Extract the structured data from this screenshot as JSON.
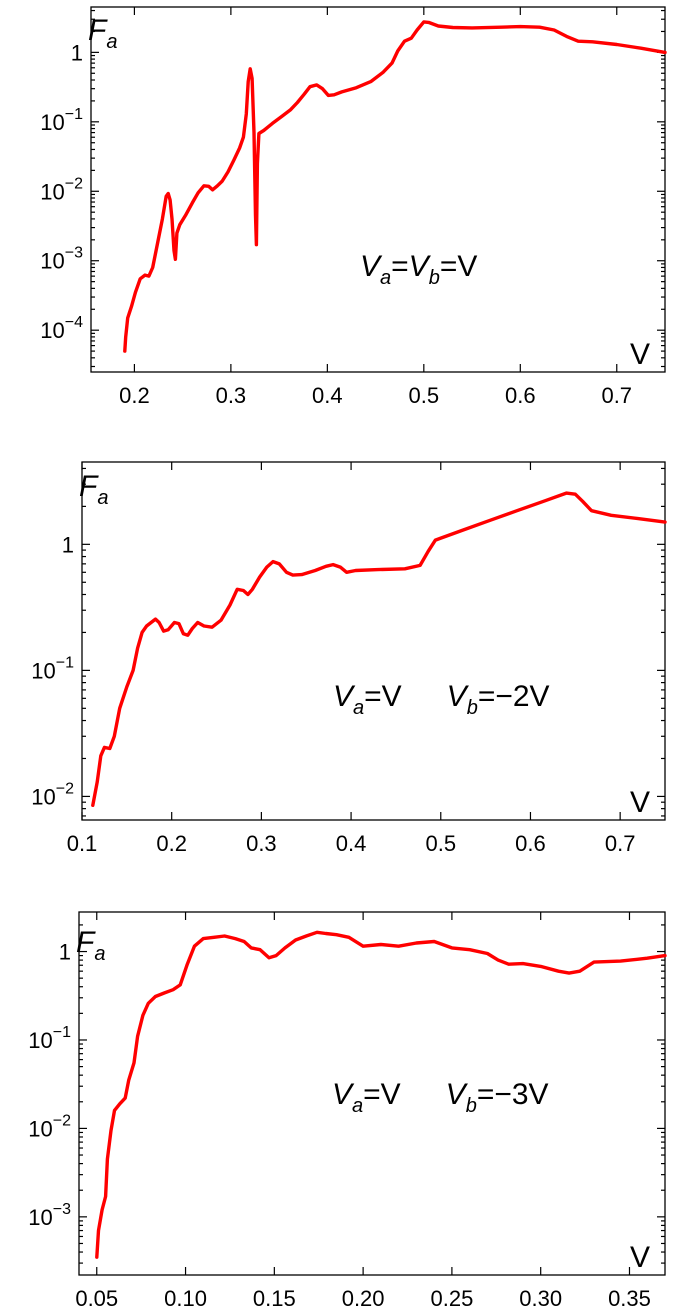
{
  "chart_data": [
    {
      "type": "line",
      "xlabel": "V",
      "ylabel_main": "F",
      "ylabel_sub": "a",
      "annotation": [
        {
          "text": "V",
          "italic": true
        },
        {
          "text": "a",
          "sub": true,
          "italic": true
        },
        {
          "text": "=",
          "italic": false
        },
        {
          "text": "V",
          "italic": true
        },
        {
          "text": "b",
          "sub": true,
          "italic": true
        },
        {
          "text": "=V",
          "italic": false
        }
      ],
      "y_scale": "log",
      "xlim": [
        0.155,
        0.75
      ],
      "ylim": [
        2.5e-05,
        4.5
      ],
      "x_ticks": [
        0.2,
        0.3,
        0.4,
        0.5,
        0.6,
        0.7
      ],
      "x_tick_labels": [
        "0.2",
        "0.3",
        "0.4",
        "0.5",
        "0.6",
        "0.7"
      ],
      "y_ticks": [
        {
          "value": 0.0001,
          "base": "10",
          "exp": "−4"
        },
        {
          "value": 0.001,
          "base": "10",
          "exp": "−3"
        },
        {
          "value": 0.01,
          "base": "10",
          "exp": "−2"
        },
        {
          "value": 0.1,
          "base": "10",
          "exp": "−1"
        },
        {
          "value": 1,
          "base": "1",
          "exp": ""
        }
      ],
      "color": "#ff0000",
      "series": [
        {
          "points": [
            [
              0.19,
              5e-05
            ],
            [
              0.191,
              8e-05
            ],
            [
              0.193,
              0.00015
            ],
            [
              0.197,
              0.00022
            ],
            [
              0.201,
              0.00035
            ],
            [
              0.206,
              0.00055
            ],
            [
              0.211,
              0.00062
            ],
            [
              0.215,
              0.0006
            ],
            [
              0.219,
              0.0008
            ],
            [
              0.224,
              0.0018
            ],
            [
              0.229,
              0.004
            ],
            [
              0.233,
              0.0085
            ],
            [
              0.235,
              0.0093
            ],
            [
              0.237,
              0.0075
            ],
            [
              0.239,
              0.004
            ],
            [
              0.241,
              0.0014
            ],
            [
              0.2425,
              0.00105
            ],
            [
              0.244,
              0.0025
            ],
            [
              0.247,
              0.0033
            ],
            [
              0.253,
              0.0045
            ],
            [
              0.26,
              0.0068
            ],
            [
              0.266,
              0.0095
            ],
            [
              0.272,
              0.012
            ],
            [
              0.277,
              0.0118
            ],
            [
              0.281,
              0.0105
            ],
            [
              0.286,
              0.012
            ],
            [
              0.291,
              0.014
            ],
            [
              0.297,
              0.019
            ],
            [
              0.303,
              0.028
            ],
            [
              0.309,
              0.042
            ],
            [
              0.313,
              0.06
            ],
            [
              0.316,
              0.13
            ],
            [
              0.318,
              0.38
            ],
            [
              0.32,
              0.58
            ],
            [
              0.322,
              0.42
            ],
            [
              0.324,
              0.07
            ],
            [
              0.3255,
              0.0045
            ],
            [
              0.3265,
              0.0017
            ],
            [
              0.3275,
              0.025
            ],
            [
              0.329,
              0.068
            ],
            [
              0.334,
              0.075
            ],
            [
              0.343,
              0.095
            ],
            [
              0.353,
              0.12
            ],
            [
              0.362,
              0.15
            ],
            [
              0.369,
              0.19
            ],
            [
              0.376,
              0.25
            ],
            [
              0.382,
              0.32
            ],
            [
              0.389,
              0.34
            ],
            [
              0.395,
              0.3
            ],
            [
              0.401,
              0.24
            ],
            [
              0.407,
              0.245
            ],
            [
              0.415,
              0.27
            ],
            [
              0.43,
              0.31
            ],
            [
              0.445,
              0.38
            ],
            [
              0.458,
              0.52
            ],
            [
              0.467,
              0.7
            ],
            [
              0.473,
              1.05
            ],
            [
              0.48,
              1.45
            ],
            [
              0.487,
              1.6
            ],
            [
              0.493,
              2.1
            ],
            [
              0.5,
              2.75
            ],
            [
              0.505,
              2.7
            ],
            [
              0.515,
              2.4
            ],
            [
              0.53,
              2.28
            ],
            [
              0.55,
              2.25
            ],
            [
              0.58,
              2.3
            ],
            [
              0.6,
              2.35
            ],
            [
              0.62,
              2.3
            ],
            [
              0.635,
              2.1
            ],
            [
              0.648,
              1.7
            ],
            [
              0.66,
              1.45
            ],
            [
              0.675,
              1.42
            ],
            [
              0.7,
              1.3
            ],
            [
              0.725,
              1.15
            ],
            [
              0.75,
              1.0
            ]
          ]
        }
      ]
    },
    {
      "type": "line",
      "xlabel": "V",
      "ylabel_main": "F",
      "ylabel_sub": "a",
      "annotation": [
        {
          "text": "V",
          "italic": true
        },
        {
          "text": "a",
          "sub": true,
          "italic": true
        },
        {
          "text": "=V",
          "italic": false
        },
        {
          "text": "  ",
          "italic": false
        },
        {
          "text": "V",
          "italic": true
        },
        {
          "text": "b",
          "sub": true,
          "italic": true
        },
        {
          "text": "=−2V",
          "italic": false
        }
      ],
      "y_scale": "log",
      "xlim": [
        0.1,
        0.75
      ],
      "ylim": [
        0.0065,
        4.5
      ],
      "x_ticks": [
        0.1,
        0.2,
        0.3,
        0.4,
        0.5,
        0.6,
        0.7
      ],
      "x_tick_labels": [
        "0.1",
        "0.2",
        "0.3",
        "0.4",
        "0.5",
        "0.6",
        "0.7"
      ],
      "y_ticks": [
        {
          "value": 0.01,
          "base": "10",
          "exp": "−2"
        },
        {
          "value": 0.1,
          "base": "10",
          "exp": "−1"
        },
        {
          "value": 1,
          "base": "1",
          "exp": ""
        }
      ],
      "color": "#ff0000",
      "series": [
        {
          "points": [
            [
              0.112,
              0.0085
            ],
            [
              0.117,
              0.013
            ],
            [
              0.121,
              0.021
            ],
            [
              0.125,
              0.0245
            ],
            [
              0.131,
              0.024
            ],
            [
              0.136,
              0.03
            ],
            [
              0.142,
              0.05
            ],
            [
              0.15,
              0.074
            ],
            [
              0.157,
              0.1
            ],
            [
              0.162,
              0.15
            ],
            [
              0.167,
              0.2
            ],
            [
              0.172,
              0.225
            ],
            [
              0.177,
              0.24
            ],
            [
              0.182,
              0.255
            ],
            [
              0.186,
              0.24
            ],
            [
              0.191,
              0.205
            ],
            [
              0.196,
              0.21
            ],
            [
              0.203,
              0.24
            ],
            [
              0.208,
              0.235
            ],
            [
              0.213,
              0.195
            ],
            [
              0.218,
              0.19
            ],
            [
              0.223,
              0.215
            ],
            [
              0.229,
              0.24
            ],
            [
              0.236,
              0.225
            ],
            [
              0.245,
              0.22
            ],
            [
              0.255,
              0.25
            ],
            [
              0.265,
              0.33
            ],
            [
              0.273,
              0.44
            ],
            [
              0.28,
              0.43
            ],
            [
              0.285,
              0.4
            ],
            [
              0.29,
              0.44
            ],
            [
              0.298,
              0.55
            ],
            [
              0.306,
              0.66
            ],
            [
              0.313,
              0.73
            ],
            [
              0.32,
              0.7
            ],
            [
              0.328,
              0.6
            ],
            [
              0.335,
              0.57
            ],
            [
              0.345,
              0.575
            ],
            [
              0.36,
              0.62
            ],
            [
              0.372,
              0.67
            ],
            [
              0.38,
              0.69
            ],
            [
              0.388,
              0.66
            ],
            [
              0.395,
              0.6
            ],
            [
              0.405,
              0.62
            ],
            [
              0.43,
              0.63
            ],
            [
              0.46,
              0.64
            ],
            [
              0.477,
              0.68
            ],
            [
              0.486,
              0.88
            ],
            [
              0.494,
              1.08
            ],
            [
              0.5,
              1.12
            ],
            [
              0.525,
              1.3
            ],
            [
              0.555,
              1.55
            ],
            [
              0.585,
              1.85
            ],
            [
              0.615,
              2.2
            ],
            [
              0.64,
              2.55
            ],
            [
              0.65,
              2.5
            ],
            [
              0.658,
              2.2
            ],
            [
              0.668,
              1.85
            ],
            [
              0.69,
              1.7
            ],
            [
              0.72,
              1.6
            ],
            [
              0.75,
              1.5
            ]
          ]
        }
      ]
    },
    {
      "type": "line",
      "xlabel": "V",
      "ylabel_main": "F",
      "ylabel_sub": "a",
      "annotation": [
        {
          "text": "V",
          "italic": true
        },
        {
          "text": "a",
          "sub": true,
          "italic": true
        },
        {
          "text": "=V",
          "italic": false
        },
        {
          "text": "  ",
          "italic": false
        },
        {
          "text": "V",
          "italic": true
        },
        {
          "text": "b",
          "sub": true,
          "italic": true
        },
        {
          "text": "=−3V",
          "italic": false
        }
      ],
      "y_scale": "log",
      "xlim": [
        0.04,
        0.37
      ],
      "ylim": [
        0.00022,
        2.8
      ],
      "x_ticks": [
        0.05,
        0.1,
        0.15,
        0.2,
        0.25,
        0.3,
        0.35
      ],
      "x_tick_labels": [
        "0.05",
        "0.10",
        "0.15",
        "0.20",
        "0.25",
        "0.30",
        "0.35"
      ],
      "y_ticks": [
        {
          "value": 0.001,
          "base": "10",
          "exp": "−3"
        },
        {
          "value": 0.01,
          "base": "10",
          "exp": "−2"
        },
        {
          "value": 0.1,
          "base": "10",
          "exp": "−1"
        },
        {
          "value": 1,
          "base": "1",
          "exp": ""
        }
      ],
      "color": "#ff0000",
      "series": [
        {
          "points": [
            [
              0.05,
              0.00035
            ],
            [
              0.051,
              0.0007
            ],
            [
              0.053,
              0.0012
            ],
            [
              0.055,
              0.0017
            ],
            [
              0.056,
              0.0045
            ],
            [
              0.058,
              0.0095
            ],
            [
              0.06,
              0.016
            ],
            [
              0.063,
              0.019
            ],
            [
              0.066,
              0.022
            ],
            [
              0.068,
              0.035
            ],
            [
              0.071,
              0.055
            ],
            [
              0.073,
              0.11
            ],
            [
              0.076,
              0.19
            ],
            [
              0.079,
              0.26
            ],
            [
              0.083,
              0.31
            ],
            [
              0.088,
              0.34
            ],
            [
              0.093,
              0.37
            ],
            [
              0.097,
              0.42
            ],
            [
              0.101,
              0.72
            ],
            [
              0.105,
              1.15
            ],
            [
              0.11,
              1.4
            ],
            [
              0.116,
              1.45
            ],
            [
              0.122,
              1.5
            ],
            [
              0.128,
              1.4
            ],
            [
              0.133,
              1.3
            ],
            [
              0.137,
              1.1
            ],
            [
              0.142,
              1.05
            ],
            [
              0.147,
              0.85
            ],
            [
              0.151,
              0.9
            ],
            [
              0.156,
              1.1
            ],
            [
              0.162,
              1.35
            ],
            [
              0.168,
              1.5
            ],
            [
              0.174,
              1.65
            ],
            [
              0.179,
              1.6
            ],
            [
              0.185,
              1.55
            ],
            [
              0.192,
              1.45
            ],
            [
              0.2,
              1.15
            ],
            [
              0.21,
              1.2
            ],
            [
              0.22,
              1.15
            ],
            [
              0.23,
              1.25
            ],
            [
              0.24,
              1.3
            ],
            [
              0.25,
              1.1
            ],
            [
              0.26,
              1.05
            ],
            [
              0.27,
              0.95
            ],
            [
              0.276,
              0.8
            ],
            [
              0.282,
              0.72
            ],
            [
              0.29,
              0.73
            ],
            [
              0.3,
              0.68
            ],
            [
              0.31,
              0.6
            ],
            [
              0.316,
              0.57
            ],
            [
              0.322,
              0.6
            ],
            [
              0.33,
              0.76
            ],
            [
              0.345,
              0.78
            ],
            [
              0.36,
              0.84
            ],
            [
              0.37,
              0.9
            ]
          ]
        }
      ]
    }
  ]
}
